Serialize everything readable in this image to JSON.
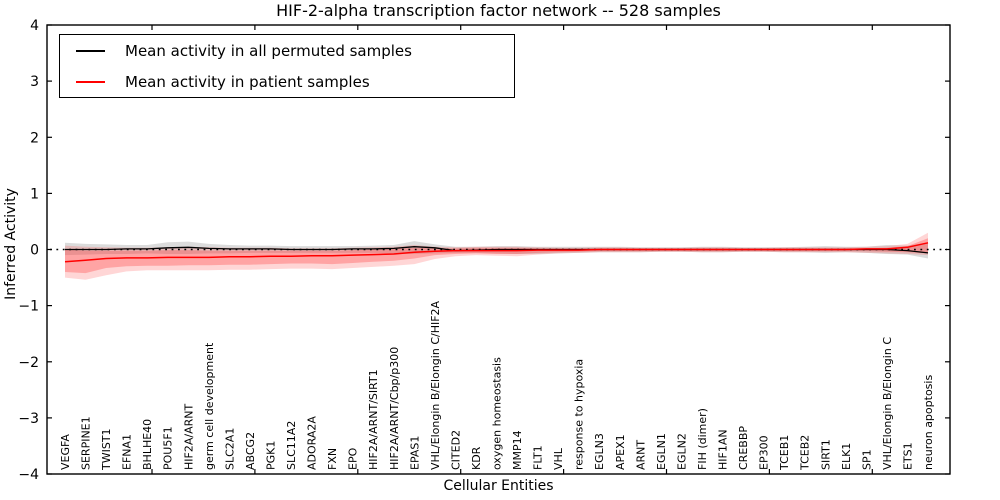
{
  "figure": {
    "title": "HIF-2-alpha transcription factor network -- 528 samples",
    "xlabel": "Cellular Entities",
    "ylabel": "Inferred Activity"
  },
  "legend": {
    "position": "upper left",
    "items": [
      {
        "label": "Mean activity in all permuted samples",
        "color": "#000000"
      },
      {
        "label": "Mean activity in patient samples",
        "color": "#ff0000"
      }
    ]
  },
  "chart_data": {
    "type": "line",
    "title": "HIF-2-alpha transcription factor network -- 528 samples",
    "xlabel": "Cellular Entities",
    "ylabel": "Inferred Activity",
    "ylim": [
      -4,
      4
    ],
    "yticks": [
      -4,
      -3,
      -2,
      -1,
      0,
      1,
      2,
      3,
      4
    ],
    "grid": false,
    "zero_reference_line": {
      "y": 0,
      "style": "dotted",
      "color": "#000000"
    },
    "legend_position": "upper left",
    "categories": [
      "VEGFA",
      "SERPINE1",
      "TWIST1",
      "EFNA1",
      "BHLHE40",
      "POU5F1",
      "HIF2A/ARNT",
      "germ cell development",
      "SLC2A1",
      "ABCG2",
      "PGK1",
      "SLC11A2",
      "ADORA2A",
      "FXN",
      "EPO",
      "HIF2A/ARNT/SIRT1",
      "HIF2A/ARNT/Cbp/p300",
      "EPAS1",
      "VHL/Elongin B/Elongin C/HIF2A",
      "CITED2",
      "KDR",
      "oxygen homeostasis",
      "MMP14",
      "FLT1",
      "VHL",
      "response to hypoxia",
      "EGLN3",
      "APEX1",
      "ARNT",
      "EGLN1",
      "EGLN2",
      "FIH (dimer)",
      "HIF1AN",
      "CREBBP",
      "EP300",
      "TCEB1",
      "TCEB2",
      "SIRT1",
      "ELK1",
      "SP1",
      "VHL/Elongin B/Elongin C",
      "ETS1",
      "neuron apoptosis"
    ],
    "series": [
      {
        "name": "Mean activity in all permuted samples",
        "color": "#000000",
        "line_width": 1.3,
        "values": [
          0.0,
          0.0,
          0.0,
          0.01,
          0.01,
          0.03,
          0.04,
          0.02,
          0.01,
          0.01,
          0.01,
          0.0,
          0.0,
          0.0,
          0.01,
          0.01,
          0.02,
          0.05,
          0.03,
          -0.02,
          -0.01,
          0.0,
          0.0,
          0.0,
          0.0,
          0.0,
          0.0,
          0.0,
          0.0,
          0.0,
          0.0,
          0.0,
          0.0,
          0.0,
          0.0,
          0.0,
          0.0,
          0.0,
          0.0,
          0.0,
          0.0,
          -0.02,
          -0.06
        ],
        "bands": [
          {
            "color": "#999999",
            "opacity": 0.35,
            "upper": [
              0.12,
              0.1,
              0.09,
              0.08,
              0.08,
              0.13,
              0.14,
              0.1,
              0.08,
              0.07,
              0.07,
              0.06,
              0.06,
              0.06,
              0.06,
              0.07,
              0.08,
              0.15,
              0.09,
              0.05,
              0.05,
              0.06,
              0.06,
              0.05,
              0.05,
              0.05,
              0.05,
              0.05,
              0.04,
              0.04,
              0.04,
              0.05,
              0.05,
              0.04,
              0.04,
              0.04,
              0.05,
              0.06,
              0.05,
              0.05,
              0.08,
              0.07,
              0.12
            ],
            "lower": [
              -0.1,
              -0.09,
              -0.08,
              -0.08,
              -0.07,
              -0.08,
              -0.08,
              -0.07,
              -0.07,
              -0.06,
              -0.06,
              -0.06,
              -0.06,
              -0.06,
              -0.06,
              -0.06,
              -0.07,
              -0.08,
              -0.07,
              -0.06,
              -0.06,
              -0.07,
              -0.08,
              -0.08,
              -0.07,
              -0.06,
              -0.05,
              -0.05,
              -0.05,
              -0.04,
              -0.04,
              -0.05,
              -0.05,
              -0.04,
              -0.04,
              -0.05,
              -0.05,
              -0.06,
              -0.05,
              -0.06,
              -0.08,
              -0.09,
              -0.16
            ]
          }
        ]
      },
      {
        "name": "Mean activity in patient samples",
        "color": "#ff0000",
        "line_width": 1.5,
        "values": [
          -0.22,
          -0.19,
          -0.16,
          -0.15,
          -0.15,
          -0.14,
          -0.14,
          -0.14,
          -0.13,
          -0.13,
          -0.12,
          -0.12,
          -0.11,
          -0.11,
          -0.1,
          -0.09,
          -0.08,
          -0.05,
          -0.03,
          -0.02,
          -0.02,
          -0.02,
          -0.02,
          -0.01,
          -0.01,
          -0.01,
          0.0,
          0.0,
          0.0,
          0.0,
          0.0,
          0.0,
          0.0,
          0.0,
          0.0,
          0.0,
          0.0,
          0.0,
          0.0,
          0.01,
          0.01,
          0.04,
          0.12
        ],
        "bands": [
          {
            "color": "#ff4444",
            "opacity": 0.22,
            "upper": [
              0.07,
              0.05,
              0.04,
              0.03,
              0.03,
              0.04,
              0.05,
              0.04,
              0.03,
              0.03,
              0.03,
              0.02,
              0.02,
              0.02,
              0.03,
              0.04,
              0.05,
              0.08,
              0.05,
              0.04,
              0.05,
              0.05,
              0.05,
              0.04,
              0.03,
              0.03,
              0.04,
              0.04,
              0.03,
              0.03,
              0.03,
              0.04,
              0.04,
              0.03,
              0.03,
              0.04,
              0.04,
              0.04,
              0.04,
              0.05,
              0.06,
              0.1,
              0.3
            ],
            "lower": [
              -0.5,
              -0.54,
              -0.46,
              -0.39,
              -0.37,
              -0.37,
              -0.37,
              -0.37,
              -0.36,
              -0.36,
              -0.35,
              -0.34,
              -0.34,
              -0.35,
              -0.33,
              -0.31,
              -0.29,
              -0.26,
              -0.17,
              -0.12,
              -0.1,
              -0.11,
              -0.12,
              -0.09,
              -0.07,
              -0.06,
              -0.05,
              -0.05,
              -0.05,
              -0.04,
              -0.04,
              -0.05,
              -0.05,
              -0.04,
              -0.04,
              -0.05,
              -0.05,
              -0.05,
              -0.05,
              -0.06,
              -0.07,
              -0.08,
              -0.1
            ]
          },
          {
            "color": "#ff3333",
            "opacity": 0.3,
            "upper": [
              0.0,
              -0.02,
              -0.02,
              -0.02,
              -0.02,
              -0.01,
              -0.01,
              -0.02,
              -0.02,
              -0.02,
              -0.02,
              -0.02,
              -0.02,
              -0.02,
              -0.01,
              0.0,
              0.01,
              0.03,
              0.02,
              0.02,
              0.03,
              0.03,
              0.03,
              0.02,
              0.02,
              0.02,
              0.02,
              0.02,
              0.02,
              0.02,
              0.02,
              0.02,
              0.02,
              0.02,
              0.02,
              0.02,
              0.02,
              0.02,
              0.02,
              0.02,
              0.03,
              0.06,
              0.2
            ],
            "lower": [
              -0.4,
              -0.42,
              -0.33,
              -0.3,
              -0.29,
              -0.29,
              -0.28,
              -0.28,
              -0.27,
              -0.27,
              -0.26,
              -0.25,
              -0.25,
              -0.26,
              -0.24,
              -0.22,
              -0.2,
              -0.16,
              -0.1,
              -0.08,
              -0.07,
              -0.08,
              -0.08,
              -0.06,
              -0.05,
              -0.04,
              -0.03,
              -0.03,
              -0.03,
              -0.03,
              -0.03,
              -0.03,
              -0.03,
              -0.03,
              -0.03,
              -0.03,
              -0.03,
              -0.03,
              -0.03,
              -0.03,
              -0.04,
              -0.05,
              -0.07
            ]
          }
        ]
      }
    ]
  }
}
